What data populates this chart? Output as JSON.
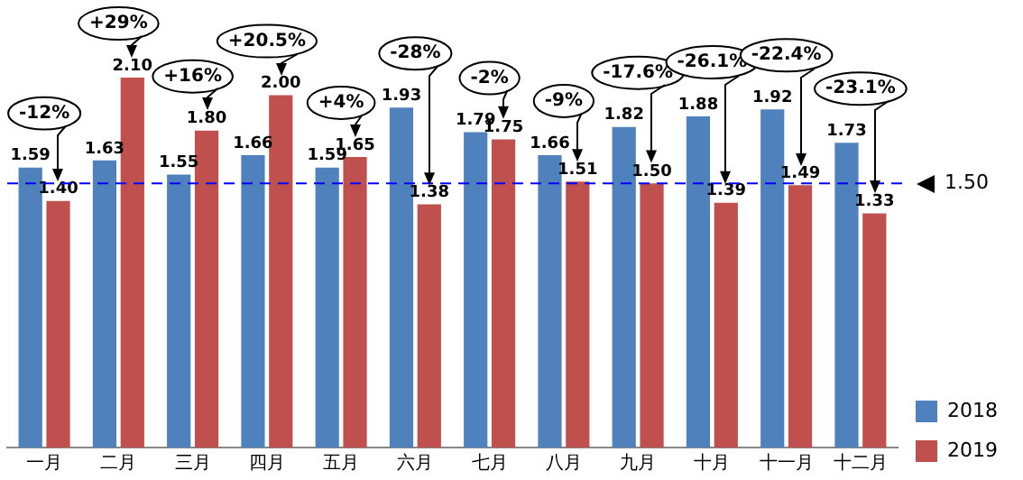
{
  "chart_data": {
    "type": "bar",
    "categories": [
      "一月",
      "二月",
      "三月",
      "四月",
      "五月",
      "六月",
      "七月",
      "八月",
      "九月",
      "十月",
      "十一月",
      "十二月"
    ],
    "series": [
      {
        "name": "2018",
        "color": "#4f81bd",
        "values": [
          1.59,
          1.63,
          1.55,
          1.66,
          1.59,
          1.93,
          1.79,
          1.66,
          1.82,
          1.88,
          1.92,
          1.73
        ],
        "value_labels": [
          "1.59",
          "1.63",
          "1.55",
          "1.66",
          "1.59",
          "1.93",
          "1.79",
          "1.66",
          "1.82",
          "1.88",
          "1.92",
          "1.73"
        ]
      },
      {
        "name": "2019",
        "color": "#c0504d",
        "values": [
          1.4,
          2.1,
          1.8,
          2.0,
          1.65,
          1.38,
          1.75,
          1.51,
          1.5,
          1.39,
          1.49,
          1.33
        ],
        "value_labels": [
          "1.40",
          "2.10",
          "1.80",
          "2.00",
          "1.65",
          "1.38",
          "1.75",
          "1.51",
          "1.50",
          "1.39",
          "1.49",
          "1.33"
        ]
      }
    ],
    "grid": false,
    "legend": "right",
    "ref_lines": [
      {
        "axis": "y",
        "value": 1.5,
        "label": "1.50",
        "color": "#0000ff",
        "line_style": "dashed"
      }
    ],
    "annotations": [
      "-12%",
      "+29%",
      "+16%",
      "+20.5%",
      "+4%",
      "-28%",
      "-2%",
      "-9%",
      "-17.6%",
      "-26.1%",
      "-22.4%",
      "-23.1%"
    ]
  }
}
